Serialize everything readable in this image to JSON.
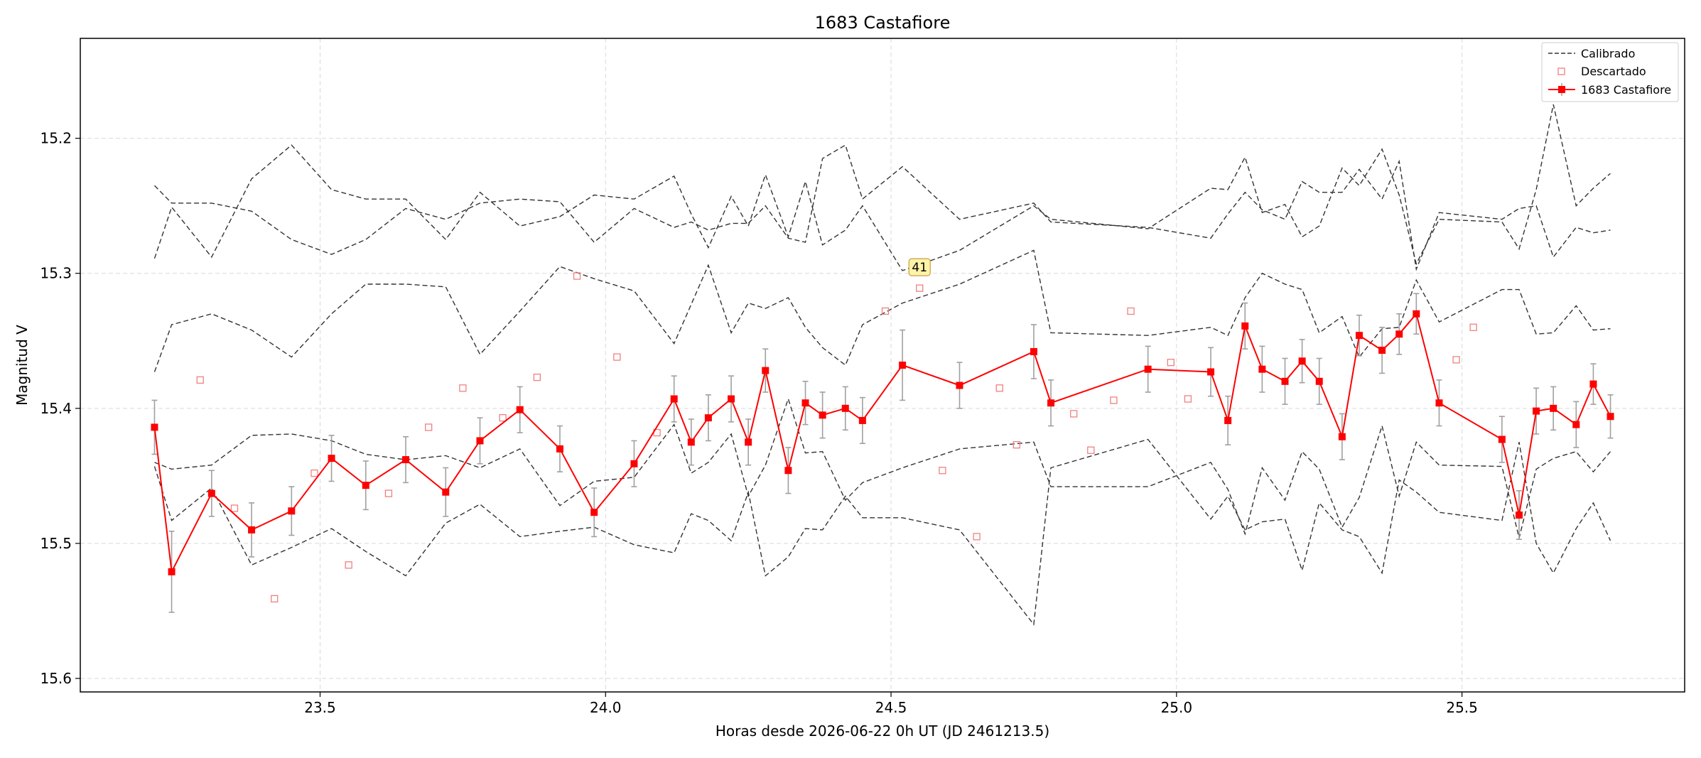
{
  "chart_data": {
    "type": "line",
    "title": "1683 Castafiore",
    "xlabel": "Horas desde 2026-06-22 0h UT (JD 2461213.5)",
    "ylabel": "Magnitud V",
    "xlim": [
      23.08,
      25.89
    ],
    "ylim": [
      15.61,
      15.126
    ],
    "y_inverted": true,
    "grid": true,
    "legend_position": "upper right",
    "x_ticks": [
      "23.5",
      "24.0",
      "24.5",
      "25.0",
      "25.5"
    ],
    "x_tick_values": [
      23.5,
      24.0,
      24.5,
      25.0,
      25.5
    ],
    "y_ticks": [
      "15.2",
      "15.3",
      "15.4",
      "15.5",
      "15.6"
    ],
    "y_tick_values": [
      15.2,
      15.3,
      15.4,
      15.5,
      15.6
    ],
    "legend": {
      "calibrated_label": "Calibrado",
      "discarded_label": "Descartado",
      "target_label": "1683 Castafiore"
    },
    "annotation": {
      "text": "41",
      "x": 24.55,
      "y": 15.296
    },
    "colors": {
      "target": "#ff0000",
      "discarded": "#f08080",
      "comparison": "#333333",
      "errorbar": "#a0a0a0",
      "grid": "#d9d9d9",
      "annotation_bg": "#fff3a8",
      "annotation_border": "#c8a040"
    },
    "series": [
      {
        "name": "1683 Castafiore",
        "x": [
          23.21,
          23.24,
          23.31,
          23.38,
          23.45,
          23.52,
          23.58,
          23.65,
          23.72,
          23.78,
          23.85,
          23.92,
          23.98,
          24.05,
          24.12,
          24.15,
          24.18,
          24.22,
          24.25,
          24.28,
          24.32,
          24.35,
          24.38,
          24.42,
          24.45,
          24.52,
          24.62,
          24.75,
          24.78,
          24.95,
          25.06,
          25.09,
          25.12,
          25.15,
          25.19,
          25.22,
          25.25,
          25.29,
          25.32,
          25.36,
          25.39,
          25.42,
          25.46,
          25.57,
          25.6,
          25.63,
          25.66,
          25.7,
          25.73,
          25.76
        ],
        "y": [
          15.414,
          15.521,
          15.463,
          15.49,
          15.476,
          15.437,
          15.457,
          15.438,
          15.462,
          15.424,
          15.401,
          15.43,
          15.477,
          15.441,
          15.393,
          15.425,
          15.407,
          15.393,
          15.425,
          15.372,
          15.446,
          15.396,
          15.405,
          15.4,
          15.409,
          15.368,
          15.383,
          15.358,
          15.396,
          15.371,
          15.373,
          15.409,
          15.339,
          15.371,
          15.38,
          15.365,
          15.38,
          15.421,
          15.346,
          15.357,
          15.345,
          15.33,
          15.396,
          15.423,
          15.479,
          15.402,
          15.4,
          15.412,
          15.382,
          15.406
        ],
        "yerr": [
          0.02,
          0.03,
          0.017,
          0.02,
          0.018,
          0.017,
          0.018,
          0.017,
          0.018,
          0.017,
          0.017,
          0.017,
          0.018,
          0.017,
          0.017,
          0.017,
          0.017,
          0.017,
          0.017,
          0.016,
          0.017,
          0.016,
          0.017,
          0.016,
          0.017,
          0.026,
          0.017,
          0.02,
          0.017,
          0.017,
          0.018,
          0.018,
          0.017,
          0.017,
          0.017,
          0.016,
          0.017,
          0.017,
          0.015,
          0.017,
          0.015,
          0.015,
          0.017,
          0.017,
          0.018,
          0.017,
          0.016,
          0.017,
          0.015,
          0.016
        ]
      },
      {
        "name": "Descartado",
        "x": [
          23.29,
          23.35,
          23.42,
          23.49,
          23.55,
          23.62,
          23.69,
          23.75,
          23.82,
          23.88,
          23.95,
          24.02,
          24.09,
          24.49,
          24.55,
          24.59,
          24.65,
          24.69,
          24.72,
          24.82,
          24.85,
          24.89,
          24.92,
          24.99,
          25.02,
          25.49,
          25.52
        ],
        "y": [
          15.379,
          15.474,
          15.541,
          15.448,
          15.516,
          15.463,
          15.414,
          15.385,
          15.407,
          15.377,
          15.302,
          15.362,
          15.418,
          15.328,
          15.311,
          15.446,
          15.495,
          15.385,
          15.427,
          15.404,
          15.431,
          15.394,
          15.328,
          15.366,
          15.393,
          15.364,
          15.34
        ]
      }
    ],
    "comparison_lines": [
      {
        "x": [
          23.21,
          23.24,
          23.31,
          23.38,
          23.45,
          23.52,
          23.58,
          23.65,
          23.72,
          23.78,
          23.85,
          23.92,
          23.98,
          24.05,
          24.12,
          24.15,
          24.18,
          24.22,
          24.25,
          24.28,
          24.32,
          24.35,
          24.38,
          24.42,
          24.45,
          24.52,
          24.62,
          24.75,
          24.78,
          24.95,
          25.06,
          25.09,
          25.12,
          25.15,
          25.19,
          25.22,
          25.25,
          25.29,
          25.32,
          25.36,
          25.39,
          25.42,
          25.46,
          25.57,
          25.6,
          25.63,
          25.66,
          25.7,
          25.73,
          25.76
        ],
        "y": [
          15.235,
          15.248,
          15.248,
          15.254,
          15.275,
          15.286,
          15.275,
          15.252,
          15.26,
          15.248,
          15.245,
          15.247,
          15.277,
          15.252,
          15.266,
          15.262,
          15.268,
          15.263,
          15.263,
          15.25,
          15.274,
          15.277,
          15.215,
          15.205,
          15.245,
          15.221,
          15.26,
          15.248,
          15.262,
          15.266,
          15.274,
          15.256,
          15.24,
          15.253,
          15.26,
          15.232,
          15.24,
          15.24,
          15.223,
          15.245,
          15.217,
          15.297,
          15.255,
          15.26,
          15.252,
          15.25,
          15.288,
          15.266,
          15.27,
          15.268
        ]
      },
      {
        "x": [
          23.21,
          23.24,
          23.31,
          23.38,
          23.45,
          23.52,
          23.58,
          23.65,
          23.72,
          23.78,
          23.85,
          23.92,
          23.98,
          24.05,
          24.12,
          24.15,
          24.18,
          24.22,
          24.25,
          24.28,
          24.32,
          24.35,
          24.38,
          24.42,
          24.45,
          24.52,
          24.62,
          24.75,
          24.78,
          24.95,
          25.06,
          25.09,
          25.12,
          25.15,
          25.19,
          25.22,
          25.25,
          25.29,
          25.32,
          25.36,
          25.39,
          25.42,
          25.46,
          25.57,
          25.6,
          25.63,
          25.66,
          25.7,
          25.73,
          25.76
        ],
        "y": [
          15.289,
          15.251,
          15.288,
          15.23,
          15.205,
          15.238,
          15.245,
          15.245,
          15.275,
          15.24,
          15.265,
          15.258,
          15.242,
          15.245,
          15.228,
          15.256,
          15.281,
          15.243,
          15.265,
          15.227,
          15.273,
          15.232,
          15.279,
          15.268,
          15.25,
          15.298,
          15.283,
          15.25,
          15.26,
          15.267,
          15.237,
          15.238,
          15.214,
          15.255,
          15.249,
          15.273,
          15.265,
          15.222,
          15.235,
          15.208,
          15.242,
          15.293,
          15.26,
          15.262,
          15.282,
          15.238,
          15.175,
          15.25,
          15.237,
          15.226
        ]
      },
      {
        "x": [
          23.21,
          23.24,
          23.31,
          23.38,
          23.45,
          23.52,
          23.58,
          23.65,
          23.72,
          23.78,
          23.85,
          23.92,
          23.98,
          24.05,
          24.12,
          24.15,
          24.18,
          24.22,
          24.25,
          24.28,
          24.32,
          24.35,
          24.38,
          24.42,
          24.45,
          24.52,
          24.62,
          24.75,
          24.78,
          24.95,
          25.06,
          25.09,
          25.12,
          25.15,
          25.19,
          25.22,
          25.25,
          25.29,
          25.32,
          25.36,
          25.39,
          25.42,
          25.46,
          25.57,
          25.6,
          25.63,
          25.66,
          25.7,
          25.73,
          25.76
        ],
        "y": [
          15.373,
          15.338,
          15.33,
          15.342,
          15.362,
          15.33,
          15.308,
          15.308,
          15.31,
          15.36,
          15.328,
          15.295,
          15.304,
          15.313,
          15.352,
          15.323,
          15.294,
          15.344,
          15.322,
          15.326,
          15.318,
          15.34,
          15.355,
          15.368,
          15.338,
          15.322,
          15.308,
          15.283,
          15.344,
          15.346,
          15.34,
          15.346,
          15.318,
          15.3,
          15.308,
          15.312,
          15.344,
          15.332,
          15.362,
          15.341,
          15.34,
          15.305,
          15.336,
          15.312,
          15.312,
          15.345,
          15.344,
          15.324,
          15.342,
          15.341
        ]
      },
      {
        "x": [
          23.21,
          23.24,
          23.31,
          23.38,
          23.45,
          23.52,
          23.58,
          23.65,
          23.72,
          23.78,
          23.85,
          23.92,
          23.98,
          24.05,
          24.12,
          24.15,
          24.18,
          24.22,
          24.25,
          24.28,
          24.32,
          24.35,
          24.38,
          24.42,
          24.45,
          24.52,
          24.62,
          24.75,
          24.78,
          24.95,
          25.06,
          25.09,
          25.12,
          25.15,
          25.19,
          25.22,
          25.25,
          25.29,
          25.32,
          25.36,
          25.39,
          25.42,
          25.46,
          25.57,
          25.6,
          25.63,
          25.66,
          25.7,
          25.73,
          25.76
        ],
        "y": [
          15.44,
          15.445,
          15.442,
          15.42,
          15.419,
          15.424,
          15.434,
          15.438,
          15.435,
          15.444,
          15.43,
          15.472,
          15.454,
          15.451,
          15.412,
          15.448,
          15.44,
          15.419,
          15.465,
          15.442,
          15.393,
          15.433,
          15.432,
          15.468,
          15.455,
          15.444,
          15.43,
          15.425,
          15.458,
          15.458,
          15.44,
          15.46,
          15.493,
          15.444,
          15.468,
          15.432,
          15.445,
          15.488,
          15.466,
          15.413,
          15.465,
          15.425,
          15.442,
          15.443,
          15.496,
          15.445,
          15.437,
          15.432,
          15.447,
          15.432
        ]
      },
      {
        "x": [
          23.21,
          23.24,
          23.31,
          23.38,
          23.45,
          23.52,
          23.58,
          23.65,
          23.72,
          23.78,
          23.85,
          23.92,
          23.98,
          24.05,
          24.12,
          24.15,
          24.18,
          24.22,
          24.25,
          24.28,
          24.32,
          24.35,
          24.38,
          24.42,
          24.45,
          24.52,
          24.62,
          24.75,
          24.78,
          24.95,
          25.06,
          25.09,
          25.12,
          25.15,
          25.19,
          25.22,
          25.25,
          25.29,
          25.32,
          25.36,
          25.39,
          25.42,
          25.46,
          25.57,
          25.6,
          25.63,
          25.66,
          25.7,
          25.73,
          25.76
        ],
        "y": [
          15.443,
          15.483,
          15.459,
          15.516,
          15.503,
          15.489,
          15.506,
          15.524,
          15.485,
          15.471,
          15.495,
          15.491,
          15.488,
          15.501,
          15.507,
          15.478,
          15.483,
          15.498,
          15.462,
          15.524,
          15.51,
          15.489,
          15.49,
          15.465,
          15.481,
          15.481,
          15.49,
          15.56,
          15.444,
          15.423,
          15.482,
          15.465,
          15.49,
          15.484,
          15.482,
          15.52,
          15.47,
          15.49,
          15.495,
          15.522,
          15.453,
          15.462,
          15.477,
          15.483,
          15.425,
          15.5,
          15.522,
          15.489,
          15.47,
          15.498
        ]
      }
    ]
  }
}
